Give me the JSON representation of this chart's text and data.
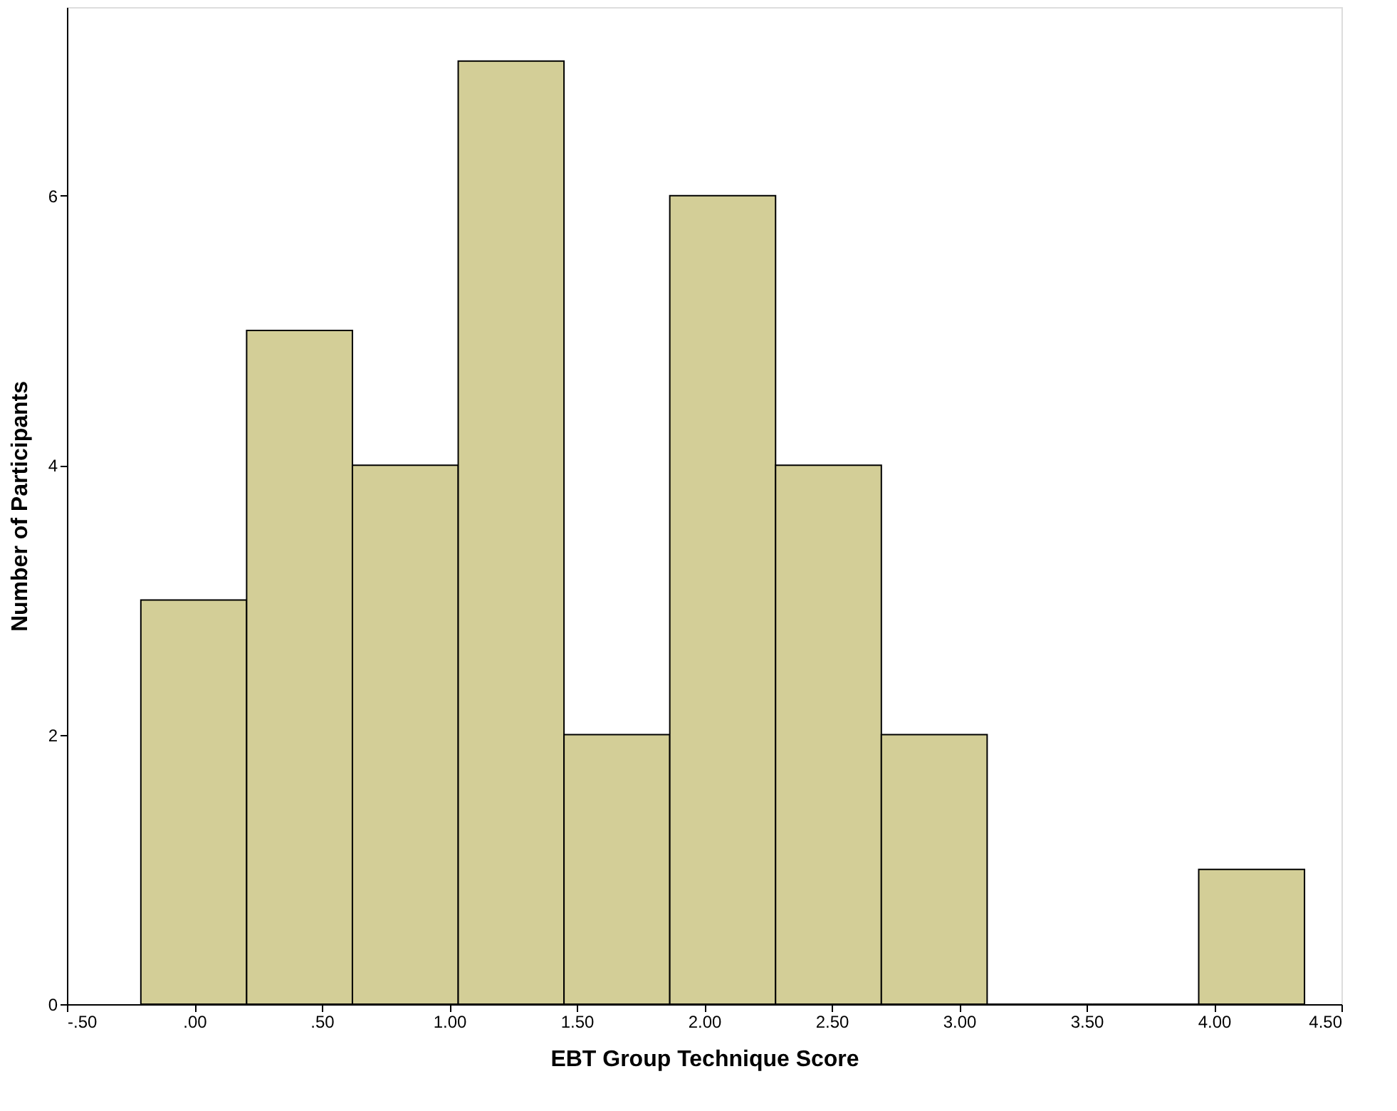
{
  "chart_data": {
    "type": "histogram",
    "xlabel": "EBT Group Technique Score",
    "ylabel": "Number of Participants",
    "bins": [
      -0.21,
      0.205,
      0.62,
      1.035,
      1.45,
      1.865,
      2.28,
      2.695,
      3.11,
      3.525,
      3.94,
      4.355
    ],
    "values": [
      3,
      5,
      4,
      7,
      2,
      6,
      4,
      2,
      0,
      0,
      1
    ],
    "color": "#d3ce97",
    "xlim": [
      -0.5,
      4.5
    ],
    "xticks": [
      {
        "value": -0.5,
        "label": "-.50"
      },
      {
        "value": 0,
        "label": ".00"
      },
      {
        "value": 0.5,
        "label": ".50"
      },
      {
        "value": 1,
        "label": "1.00"
      },
      {
        "value": 1.5,
        "label": "1.50"
      },
      {
        "value": 2,
        "label": "2.00"
      },
      {
        "value": 2.5,
        "label": "2.50"
      },
      {
        "value": 3,
        "label": "3.00"
      },
      {
        "value": 3.5,
        "label": "3.50"
      },
      {
        "value": 4,
        "label": "4.00"
      },
      {
        "value": 4.5,
        "label": "4.50"
      }
    ],
    "ylim": [
      0,
      7.4
    ],
    "yticks": [
      0,
      2,
      4,
      6
    ],
    "grid": false
  }
}
